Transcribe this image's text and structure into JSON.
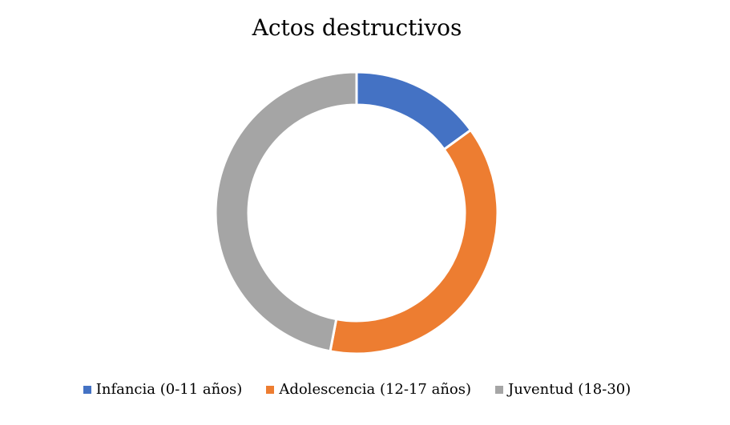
{
  "chart_data": {
    "type": "pie",
    "variant": "donut",
    "title": "Actos destructivos",
    "categories": [
      "Infancia (0-11 años)",
      "Adolescencia (12-17 años)",
      "Juventud (18-30)"
    ],
    "values": [
      15,
      38,
      47
    ],
    "colors": [
      "#4472C4",
      "#ED7D31",
      "#A5A5A5"
    ],
    "legend_position": "bottom"
  }
}
